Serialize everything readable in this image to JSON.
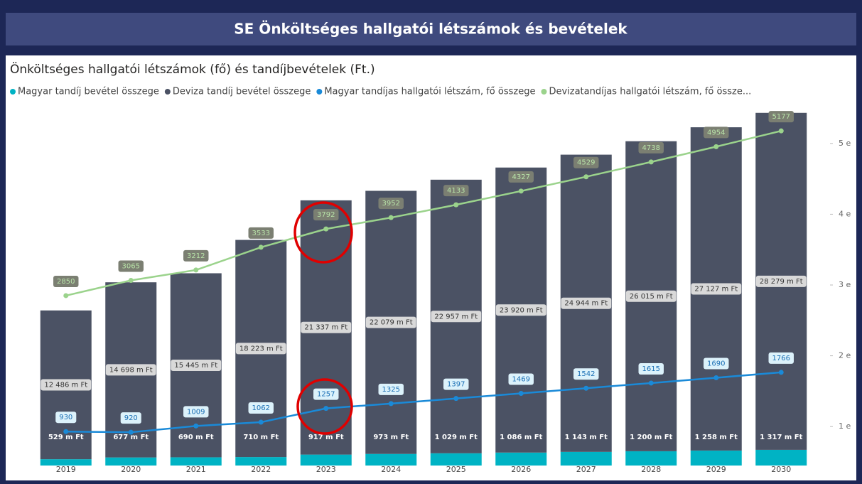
{
  "page": {
    "title": "SE Önköltséges hallgatói létszámok és bevételek"
  },
  "chart_data": {
    "type": "combo",
    "title": "Önköltséges hallgatói létszámok (fő) és tandíjbevételek (Ft.)",
    "categories": [
      "2019",
      "2020",
      "2021",
      "2022",
      "2023",
      "2024",
      "2025",
      "2026",
      "2027",
      "2028",
      "2029",
      "2030"
    ],
    "ylim": [
      0,
      30000
    ],
    "y2lim": [
      450,
      5500
    ],
    "y2ticks": [
      {
        "value": 1000,
        "label": "1 e"
      },
      {
        "value": 2000,
        "label": "2 e"
      },
      {
        "value": 3000,
        "label": "3 e"
      },
      {
        "value": 4000,
        "label": "4 e"
      },
      {
        "value": 5000,
        "label": "5 e"
      }
    ],
    "legend": "top-left",
    "series": [
      {
        "name": "Magyar tandíj bevétel összege",
        "type": "bar",
        "color": "#00b3c4",
        "values": [
          529,
          677,
          690,
          710,
          917,
          973,
          1029,
          1086,
          1143,
          1200,
          1258,
          1317
        ],
        "value_labels": [
          "529 m Ft",
          "677 m Ft",
          "690 m Ft",
          "710 m Ft",
          "917 m Ft",
          "973 m Ft",
          "1 029 m Ft",
          "1 086 m Ft",
          "1 143 m Ft",
          "1 200 m Ft",
          "1 258 m Ft",
          "1 317 m Ft"
        ]
      },
      {
        "name": "Deviza tandíj bevétel összege",
        "type": "bar",
        "color": "#4b5264",
        "values": [
          12486,
          14698,
          15445,
          18223,
          21337,
          22079,
          22957,
          23920,
          24944,
          26015,
          27127,
          28279
        ],
        "value_labels": [
          "12 486 m Ft",
          "14 698 m Ft",
          "15 445 m Ft",
          "18 223 m Ft",
          "21 337 m Ft",
          "22 079 m Ft",
          "22 957 m Ft",
          "23 920 m Ft",
          "24 944 m Ft",
          "26 015 m Ft",
          "27 127 m Ft",
          "28 279 m Ft"
        ]
      },
      {
        "name": "Magyar tandíjas hallgatói létszám, fő összege",
        "type": "line",
        "axis": "y2",
        "color": "#1a8ad8",
        "values": [
          930,
          920,
          1009,
          1062,
          1257,
          1325,
          1397,
          1469,
          1542,
          1615,
          1690,
          1766
        ]
      },
      {
        "name": "Devizatandíjas hallgatói létszám, fő össze...",
        "type": "line",
        "axis": "y2",
        "color": "#9bd38c",
        "values": [
          2850,
          3065,
          3212,
          3533,
          3792,
          3952,
          4133,
          4327,
          4529,
          4738,
          4954,
          5177
        ]
      }
    ]
  }
}
